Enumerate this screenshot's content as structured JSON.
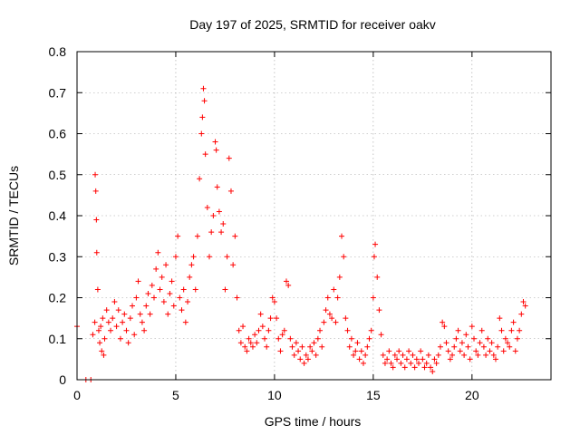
{
  "chart_data": {
    "type": "scatter",
    "title": "Day 197 of 2025, SRMTID for receiver oakv",
    "xlabel": "GPS time / hours",
    "ylabel": "SRMTID / TECUs",
    "xlim": [
      0,
      24
    ],
    "ylim": [
      0,
      0.8
    ],
    "xticks": [
      0,
      5,
      10,
      15,
      20
    ],
    "xtick_labels": [
      "0",
      "5",
      "10",
      "15",
      "20"
    ],
    "yticks": [
      0,
      0.1,
      0.2,
      0.3,
      0.4,
      0.5,
      0.6,
      0.7,
      0.8
    ],
    "ytick_labels": [
      "0",
      "0.1",
      "0.2",
      "0.3",
      "0.4",
      "0.5",
      "0.6",
      "0.7",
      "0.8"
    ],
    "grid": true,
    "marker": "plus",
    "color": "#ff0000",
    "series": [
      {
        "name": "SRMTID",
        "x": [
          0.0,
          0.45,
          0.7,
          0.8,
          0.9,
          0.92,
          0.95,
          0.98,
          1.0,
          1.05,
          1.1,
          1.15,
          1.2,
          1.25,
          1.3,
          1.35,
          1.4,
          1.5,
          1.6,
          1.7,
          1.8,
          1.9,
          2.0,
          2.1,
          2.2,
          2.3,
          2.4,
          2.5,
          2.6,
          2.7,
          2.8,
          2.9,
          3.0,
          3.1,
          3.2,
          3.3,
          3.4,
          3.5,
          3.6,
          3.7,
          3.8,
          3.9,
          4.0,
          4.1,
          4.2,
          4.3,
          4.4,
          4.5,
          4.6,
          4.7,
          4.8,
          4.9,
          5.0,
          5.1,
          5.2,
          5.3,
          5.4,
          5.5,
          5.6,
          5.7,
          5.8,
          5.9,
          6.0,
          6.1,
          6.2,
          6.3,
          6.35,
          6.4,
          6.45,
          6.5,
          6.6,
          6.7,
          6.8,
          6.9,
          7.0,
          7.05,
          7.1,
          7.2,
          7.3,
          7.4,
          7.5,
          7.6,
          7.7,
          7.8,
          7.9,
          8.0,
          8.1,
          8.2,
          8.3,
          8.4,
          8.5,
          8.6,
          8.7,
          8.8,
          8.9,
          9.0,
          9.1,
          9.2,
          9.3,
          9.4,
          9.5,
          9.6,
          9.7,
          9.8,
          9.9,
          10.0,
          10.1,
          10.2,
          10.3,
          10.4,
          10.5,
          10.6,
          10.7,
          10.8,
          10.9,
          11.0,
          11.1,
          11.2,
          11.3,
          11.4,
          11.5,
          11.6,
          11.7,
          11.8,
          11.9,
          12.0,
          12.1,
          12.2,
          12.3,
          12.4,
          12.5,
          12.6,
          12.7,
          12.8,
          12.9,
          13.0,
          13.1,
          13.2,
          13.3,
          13.4,
          13.5,
          13.6,
          13.7,
          13.8,
          13.9,
          14.0,
          14.1,
          14.2,
          14.3,
          14.4,
          14.5,
          14.6,
          14.7,
          14.8,
          14.9,
          15.0,
          15.05,
          15.1,
          15.2,
          15.3,
          15.4,
          15.5,
          15.6,
          15.7,
          15.8,
          15.9,
          16.0,
          16.1,
          16.2,
          16.3,
          16.4,
          16.5,
          16.6,
          16.7,
          16.8,
          16.9,
          17.0,
          17.1,
          17.2,
          17.3,
          17.4,
          17.5,
          17.6,
          17.7,
          17.8,
          17.9,
          18.0,
          18.1,
          18.2,
          18.3,
          18.4,
          18.5,
          18.6,
          18.7,
          18.8,
          18.9,
          19.0,
          19.1,
          19.2,
          19.3,
          19.4,
          19.5,
          19.6,
          19.7,
          19.8,
          19.9,
          20.0,
          20.1,
          20.2,
          20.3,
          20.4,
          20.5,
          20.6,
          20.7,
          20.8,
          20.9,
          21.0,
          21.1,
          21.2,
          21.3,
          21.4,
          21.5,
          21.6,
          21.7,
          21.8,
          21.9,
          22.0,
          22.1,
          22.2,
          22.3,
          22.4,
          22.5,
          22.6,
          22.7
        ],
        "y": [
          0.13,
          0.0,
          0.0,
          0.11,
          0.14,
          0.5,
          0.46,
          0.39,
          0.31,
          0.22,
          0.12,
          0.09,
          0.13,
          0.07,
          0.15,
          0.06,
          0.1,
          0.17,
          0.14,
          0.12,
          0.15,
          0.19,
          0.13,
          0.17,
          0.1,
          0.14,
          0.16,
          0.12,
          0.09,
          0.15,
          0.18,
          0.11,
          0.2,
          0.24,
          0.16,
          0.14,
          0.12,
          0.18,
          0.21,
          0.16,
          0.23,
          0.2,
          0.27,
          0.31,
          0.22,
          0.25,
          0.19,
          0.28,
          0.16,
          0.21,
          0.24,
          0.18,
          0.3,
          0.35,
          0.2,
          0.17,
          0.22,
          0.14,
          0.19,
          0.25,
          0.28,
          0.3,
          0.22,
          0.35,
          0.49,
          0.6,
          0.64,
          0.71,
          0.68,
          0.55,
          0.42,
          0.3,
          0.36,
          0.4,
          0.58,
          0.56,
          0.47,
          0.41,
          0.36,
          0.38,
          0.22,
          0.3,
          0.54,
          0.46,
          0.28,
          0.35,
          0.2,
          0.12,
          0.09,
          0.13,
          0.08,
          0.07,
          0.1,
          0.09,
          0.08,
          0.11,
          0.09,
          0.12,
          0.16,
          0.13,
          0.1,
          0.08,
          0.12,
          0.15,
          0.2,
          0.19,
          0.15,
          0.1,
          0.07,
          0.11,
          0.12,
          0.24,
          0.23,
          0.1,
          0.08,
          0.06,
          0.09,
          0.07,
          0.05,
          0.08,
          0.04,
          0.06,
          0.05,
          0.08,
          0.07,
          0.09,
          0.06,
          0.1,
          0.12,
          0.08,
          0.14,
          0.17,
          0.2,
          0.16,
          0.15,
          0.22,
          0.14,
          0.2,
          0.25,
          0.35,
          0.3,
          0.15,
          0.12,
          0.08,
          0.1,
          0.06,
          0.07,
          0.09,
          0.05,
          0.07,
          0.04,
          0.06,
          0.08,
          0.1,
          0.12,
          0.2,
          0.3,
          0.33,
          0.25,
          0.17,
          0.11,
          0.06,
          0.04,
          0.05,
          0.07,
          0.04,
          0.03,
          0.06,
          0.05,
          0.07,
          0.04,
          0.06,
          0.03,
          0.05,
          0.07,
          0.04,
          0.06,
          0.03,
          0.05,
          0.04,
          0.07,
          0.05,
          0.03,
          0.04,
          0.06,
          0.03,
          0.02,
          0.05,
          0.04,
          0.06,
          0.08,
          0.14,
          0.13,
          0.09,
          0.07,
          0.05,
          0.06,
          0.08,
          0.1,
          0.12,
          0.07,
          0.09,
          0.06,
          0.11,
          0.08,
          0.05,
          0.13,
          0.1,
          0.07,
          0.06,
          0.09,
          0.12,
          0.08,
          0.06,
          0.1,
          0.07,
          0.09,
          0.06,
          0.05,
          0.08,
          0.15,
          0.12,
          0.07,
          0.1,
          0.09,
          0.08,
          0.12,
          0.14,
          0.07,
          0.1,
          0.12,
          0.16,
          0.19,
          0.18
        ]
      }
    ]
  }
}
